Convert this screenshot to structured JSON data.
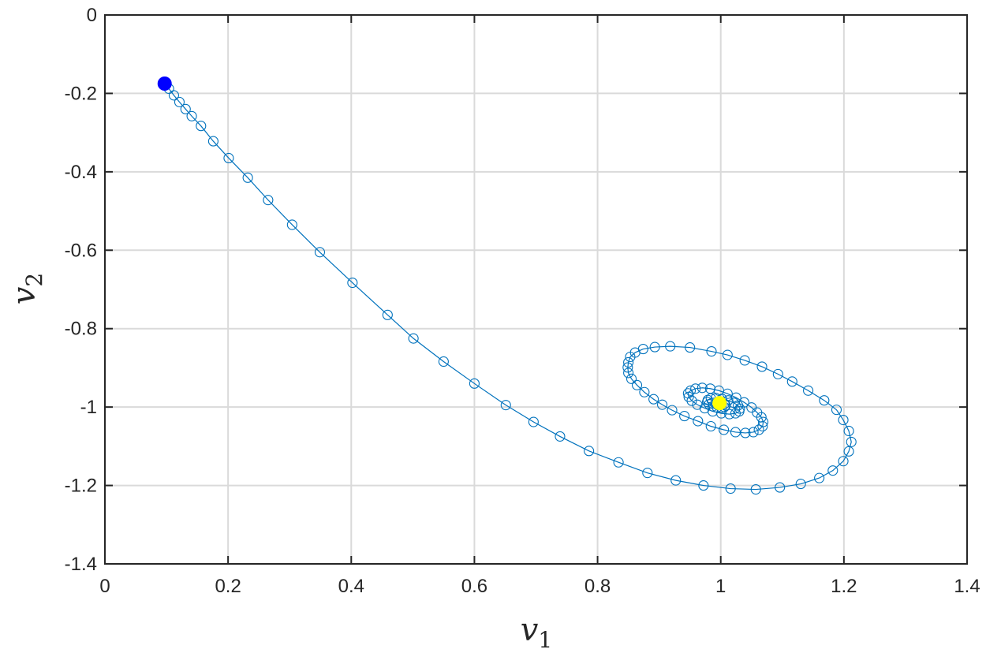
{
  "chart_data": {
    "type": "line",
    "title": "",
    "xlabel": {
      "base": "v",
      "sub": "1"
    },
    "ylabel": {
      "base": "v",
      "sub": "2"
    },
    "xlim": [
      0,
      1.4
    ],
    "ylim": [
      -1.4,
      0
    ],
    "grid": true,
    "x_ticks": [
      0,
      0.2,
      0.4,
      0.6,
      0.8,
      1,
      1.2,
      1.4
    ],
    "x_tick_labels": [
      "0",
      "0.2",
      "0.4",
      "0.6",
      "0.8",
      "1",
      "1.2",
      "1.4"
    ],
    "y_ticks": [
      0,
      -0.2,
      -0.4,
      -0.6,
      -0.8,
      -1,
      -1.2,
      -1.4
    ],
    "y_tick_labels": [
      "0",
      "-0.2",
      "-0.4",
      "-0.6",
      "-0.8",
      "-1",
      "-1.2",
      "-1.4"
    ],
    "colors": {
      "trajectory": "#0072BD",
      "start_marker": "#0000FF",
      "end_marker": "#FFFF00",
      "grid": "#DADADA",
      "axis": "#262626"
    },
    "series": [
      {
        "marker": "circle-open",
        "points": [
          [
            0.097,
            -0.175
          ],
          [
            0.104,
            -0.188
          ],
          [
            0.112,
            -0.205
          ],
          [
            0.121,
            -0.222
          ],
          [
            0.131,
            -0.24
          ],
          [
            0.141,
            -0.258
          ],
          [
            0.156,
            -0.283
          ],
          [
            0.176,
            -0.322
          ],
          [
            0.201,
            -0.365
          ],
          [
            0.232,
            -0.415
          ],
          [
            0.265,
            -0.472
          ],
          [
            0.304,
            -0.535
          ],
          [
            0.349,
            -0.605
          ],
          [
            0.402,
            -0.683
          ],
          [
            0.459,
            -0.765
          ],
          [
            0.501,
            -0.825
          ],
          [
            0.55,
            -0.884
          ],
          [
            0.6,
            -0.94
          ],
          [
            0.651,
            -0.995
          ],
          [
            0.696,
            -1.038
          ],
          [
            0.739,
            -1.075
          ],
          [
            0.786,
            -1.112
          ],
          [
            0.834,
            -1.141
          ],
          [
            0.881,
            -1.168
          ],
          [
            0.927,
            -1.187
          ],
          [
            0.972,
            -1.2
          ],
          [
            1.016,
            -1.208
          ],
          [
            1.057,
            -1.21
          ],
          [
            1.096,
            -1.205
          ],
          [
            1.13,
            -1.196
          ],
          [
            1.16,
            -1.181
          ],
          [
            1.182,
            -1.162
          ],
          [
            1.199,
            -1.138
          ],
          [
            1.208,
            -1.113
          ],
          [
            1.212,
            -1.089
          ],
          [
            1.208,
            -1.061
          ],
          [
            1.199,
            -1.033
          ],
          [
            1.188,
            -1.007
          ],
          [
            1.168,
            -0.983
          ],
          [
            1.142,
            -0.958
          ],
          [
            1.116,
            -0.935
          ],
          [
            1.093,
            -0.916
          ],
          [
            1.067,
            -0.897
          ],
          [
            1.039,
            -0.881
          ],
          [
            1.011,
            -0.867
          ],
          [
            0.985,
            -0.858
          ],
          [
            0.95,
            -0.848
          ],
          [
            0.918,
            -0.845
          ],
          [
            0.893,
            -0.847
          ],
          [
            0.874,
            -0.852
          ],
          [
            0.861,
            -0.861
          ],
          [
            0.853,
            -0.872
          ],
          [
            0.85,
            -0.886
          ],
          [
            0.849,
            -0.899
          ],
          [
            0.85,
            -0.913
          ],
          [
            0.855,
            -0.928
          ],
          [
            0.864,
            -0.944
          ],
          [
            0.876,
            -0.962
          ],
          [
            0.891,
            -0.98
          ],
          [
            0.905,
            -0.994
          ],
          [
            0.921,
            -1.008
          ],
          [
            0.941,
            -1.023
          ],
          [
            0.963,
            -1.036
          ],
          [
            0.984,
            -1.049
          ],
          [
            1.005,
            -1.058
          ],
          [
            1.024,
            -1.064
          ],
          [
            1.04,
            -1.066
          ],
          [
            1.053,
            -1.064
          ],
          [
            1.062,
            -1.058
          ],
          [
            1.068,
            -1.049
          ],
          [
            1.069,
            -1.038
          ],
          [
            1.066,
            -1.026
          ],
          [
            1.059,
            -1.014
          ],
          [
            1.05,
            -1.001
          ],
          [
            1.038,
            -0.988
          ],
          [
            1.025,
            -0.976
          ],
          [
            1.011,
            -0.966
          ],
          [
            0.997,
            -0.958
          ],
          [
            0.983,
            -0.953
          ],
          [
            0.97,
            -0.951
          ],
          [
            0.959,
            -0.953
          ],
          [
            0.951,
            -0.958
          ],
          [
            0.947,
            -0.965
          ],
          [
            0.948,
            -0.974
          ],
          [
            0.953,
            -0.984
          ],
          [
            0.962,
            -0.994
          ],
          [
            0.974,
            -1.003
          ],
          [
            0.987,
            -1.011
          ],
          [
            1.001,
            -1.016
          ],
          [
            1.014,
            -1.018
          ],
          [
            1.024,
            -1.016
          ],
          [
            1.03,
            -1.011
          ],
          [
            1.031,
            -1.004
          ],
          [
            1.028,
            -0.996
          ],
          [
            1.021,
            -0.989
          ],
          [
            1.012,
            -0.983
          ],
          [
            1.002,
            -0.979
          ],
          [
            0.992,
            -0.977
          ],
          [
            0.984,
            -0.978
          ],
          [
            0.979,
            -0.982
          ],
          [
            0.978,
            -0.987
          ],
          [
            0.981,
            -0.993
          ],
          [
            0.987,
            -0.998
          ],
          [
            0.994,
            -1.001
          ],
          [
            1.001,
            -1.002
          ],
          [
            1.006,
            -1.0
          ],
          [
            1.008,
            -0.996
          ],
          [
            1.006,
            -0.992
          ],
          [
            1.001,
            -0.989
          ],
          [
            0.996,
            -0.988
          ],
          [
            0.993,
            -0.99
          ],
          [
            0.993,
            -0.993
          ],
          [
            0.996,
            -0.995
          ]
        ]
      }
    ],
    "start_point": [
      0.097,
      -0.175
    ],
    "end_point": [
      0.998,
      -0.99
    ]
  }
}
